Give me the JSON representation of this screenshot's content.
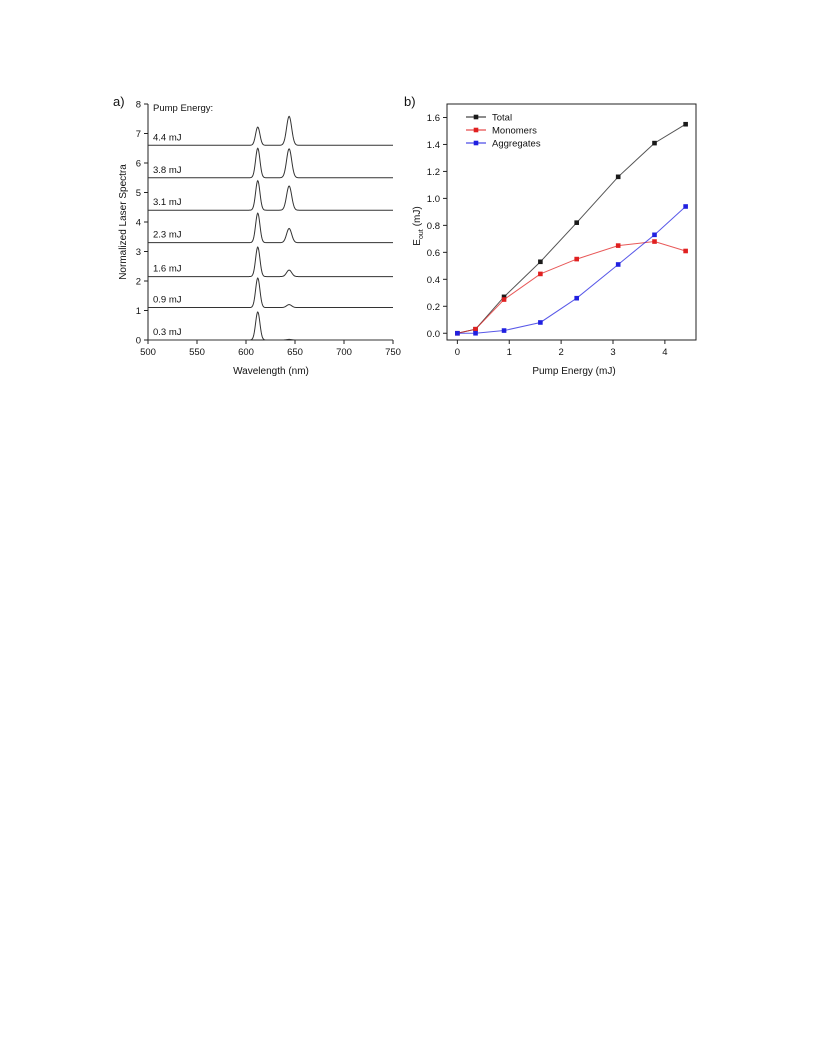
{
  "chart_data": [
    {
      "panel": "a)",
      "type": "line",
      "xlabel": "Wavelength (nm)",
      "ylabel": "Normalized Laser Spectra",
      "xlim": [
        500,
        750
      ],
      "ylim": [
        0,
        8
      ],
      "xticks": [
        500,
        550,
        600,
        650,
        700,
        750
      ],
      "yticks": [
        0,
        1,
        2,
        3,
        4,
        5,
        6,
        7,
        8
      ],
      "legend_title": "Pump Energy:",
      "grid": false,
      "series": [
        {
          "name": "0.3 mJ",
          "baseline": 0.0,
          "peaks": [
            {
              "center": 612,
              "height": 0.95,
              "width": 2.2
            },
            {
              "center": 644,
              "height": 0.02,
              "width": 2.6
            }
          ]
        },
        {
          "name": "0.9 mJ",
          "baseline": 1.1,
          "peaks": [
            {
              "center": 612,
              "height": 1.0,
              "width": 2.2
            },
            {
              "center": 644,
              "height": 0.1,
              "width": 2.6
            }
          ]
        },
        {
          "name": "1.6 mJ",
          "baseline": 2.15,
          "peaks": [
            {
              "center": 612,
              "height": 1.0,
              "width": 2.2
            },
            {
              "center": 644,
              "height": 0.22,
              "width": 2.6
            }
          ]
        },
        {
          "name": "2.3 mJ",
          "baseline": 3.3,
          "peaks": [
            {
              "center": 612,
              "height": 1.0,
              "width": 2.2
            },
            {
              "center": 644,
              "height": 0.48,
              "width": 2.6
            }
          ]
        },
        {
          "name": "3.1 mJ",
          "baseline": 4.4,
          "peaks": [
            {
              "center": 612,
              "height": 1.0,
              "width": 2.2
            },
            {
              "center": 644,
              "height": 0.82,
              "width": 2.6
            }
          ]
        },
        {
          "name": "3.8 mJ",
          "baseline": 5.5,
          "peaks": [
            {
              "center": 612,
              "height": 1.0,
              "width": 2.2
            },
            {
              "center": 644,
              "height": 0.98,
              "width": 2.6
            }
          ]
        },
        {
          "name": "4.4 mJ",
          "baseline": 6.6,
          "peaks": [
            {
              "center": 612,
              "height": 0.62,
              "width": 2.2
            },
            {
              "center": 644,
              "height": 0.98,
              "width": 2.6
            }
          ]
        }
      ]
    },
    {
      "panel": "b)",
      "type": "line",
      "xlabel": "Pump Energy (mJ)",
      "ylabel": "E",
      "ylabel_sub": "out",
      "ylabel_unit": "(mJ)",
      "xlim": [
        -0.2,
        4.6
      ],
      "ylim": [
        -0.05,
        1.7
      ],
      "xticks": [
        0,
        1,
        2,
        3,
        4
      ],
      "yticks": [
        "0.0",
        "0.2",
        "0.4",
        "0.6",
        "0.8",
        "1.0",
        "1.2",
        "1.4",
        "1.6"
      ],
      "legend_position": "top-left",
      "grid": false,
      "x": [
        0,
        0.35,
        0.9,
        1.6,
        2.3,
        3.1,
        3.8,
        4.4
      ],
      "series": [
        {
          "name": "Total",
          "color": "#1a1a1a",
          "values": [
            0.0,
            0.03,
            0.27,
            0.53,
            0.82,
            1.16,
            1.41,
            1.55
          ]
        },
        {
          "name": "Monomers",
          "color": "#e02020",
          "values": [
            0.0,
            0.03,
            0.25,
            0.44,
            0.55,
            0.65,
            0.68,
            0.61
          ]
        },
        {
          "name": "Aggregates",
          "color": "#2020e0",
          "values": [
            0.0,
            0.0,
            0.02,
            0.08,
            0.26,
            0.51,
            0.73,
            0.94
          ]
        }
      ]
    }
  ]
}
